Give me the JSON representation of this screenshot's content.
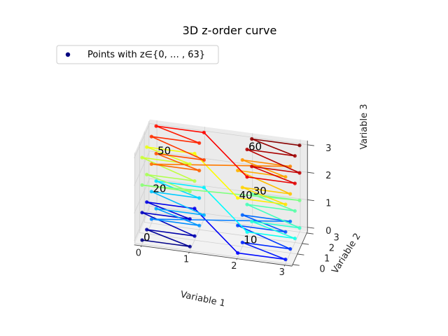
{
  "chart_data": {
    "type": "line",
    "title": "3D z-order curve",
    "xlabel": "Variable 1",
    "ylabel": "Variable 2",
    "zlabel": "Variable 3",
    "x_ticks": [
      "0",
      "1",
      "2",
      "3"
    ],
    "y_ticks": [
      "0",
      "1",
      "2",
      "3"
    ],
    "z_ticks": [
      "0",
      "1",
      "2",
      "3"
    ],
    "xlim": [
      0,
      3
    ],
    "ylim": [
      0,
      3
    ],
    "zlim": [
      0,
      3
    ],
    "grid": true,
    "legend": {
      "position": "top-left",
      "label": "Points with z∈{0, … , 63}"
    },
    "colormap": "jet",
    "annotations": [
      {
        "text": "0",
        "index": 0
      },
      {
        "text": "10",
        "index": 10
      },
      {
        "text": "20",
        "index": 20
      },
      {
        "text": "30",
        "index": 30
      },
      {
        "text": "40",
        "index": 40
      },
      {
        "text": "50",
        "index": 50
      },
      {
        "text": "60",
        "index": 60
      }
    ],
    "num_points": 64,
    "points": [
      [
        0,
        0,
        0
      ],
      [
        1,
        0,
        0
      ],
      [
        0,
        1,
        0
      ],
      [
        1,
        1,
        0
      ],
      [
        0,
        0,
        1
      ],
      [
        1,
        0,
        1
      ],
      [
        0,
        1,
        1
      ],
      [
        1,
        1,
        1
      ],
      [
        2,
        0,
        0
      ],
      [
        3,
        0,
        0
      ],
      [
        2,
        1,
        0
      ],
      [
        3,
        1,
        0
      ],
      [
        2,
        0,
        1
      ],
      [
        3,
        0,
        1
      ],
      [
        2,
        1,
        1
      ],
      [
        3,
        1,
        1
      ],
      [
        0,
        2,
        0
      ],
      [
        1,
        2,
        0
      ],
      [
        0,
        3,
        0
      ],
      [
        1,
        3,
        0
      ],
      [
        0,
        2,
        1
      ],
      [
        1,
        2,
        1
      ],
      [
        0,
        3,
        1
      ],
      [
        1,
        3,
        1
      ],
      [
        2,
        2,
        0
      ],
      [
        3,
        2,
        0
      ],
      [
        2,
        3,
        0
      ],
      [
        3,
        3,
        0
      ],
      [
        2,
        2,
        1
      ],
      [
        3,
        2,
        1
      ],
      [
        2,
        3,
        1
      ],
      [
        3,
        3,
        1
      ],
      [
        0,
        0,
        2
      ],
      [
        1,
        0,
        2
      ],
      [
        0,
        1,
        2
      ],
      [
        1,
        1,
        2
      ],
      [
        0,
        0,
        3
      ],
      [
        1,
        0,
        3
      ],
      [
        0,
        1,
        3
      ],
      [
        1,
        1,
        3
      ],
      [
        2,
        0,
        2
      ],
      [
        3,
        0,
        2
      ],
      [
        2,
        1,
        2
      ],
      [
        3,
        1,
        2
      ],
      [
        2,
        0,
        3
      ],
      [
        3,
        0,
        3
      ],
      [
        2,
        1,
        3
      ],
      [
        3,
        1,
        3
      ],
      [
        0,
        2,
        2
      ],
      [
        1,
        2,
        2
      ],
      [
        0,
        3,
        2
      ],
      [
        1,
        3,
        2
      ],
      [
        0,
        2,
        3
      ],
      [
        1,
        2,
        3
      ],
      [
        0,
        3,
        3
      ],
      [
        1,
        3,
        3
      ],
      [
        2,
        2,
        2
      ],
      [
        3,
        2,
        2
      ],
      [
        2,
        3,
        2
      ],
      [
        3,
        3,
        2
      ],
      [
        2,
        2,
        3
      ],
      [
        3,
        2,
        3
      ],
      [
        2,
        3,
        3
      ],
      [
        3,
        3,
        3
      ]
    ]
  }
}
